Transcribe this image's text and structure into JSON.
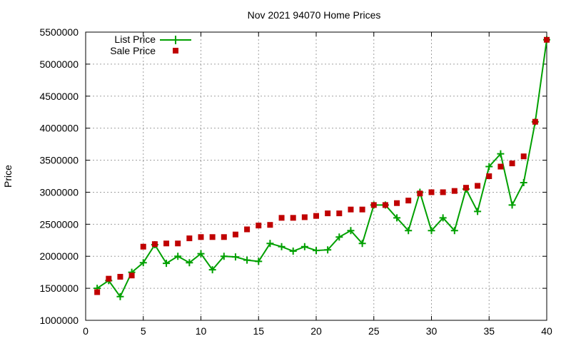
{
  "chart_data": {
    "type": "line",
    "title": "Nov 2021 94070 Home Prices",
    "xlabel": "",
    "ylabel": "Price",
    "xlim": [
      0,
      40
    ],
    "ylim": [
      1000000,
      5500000
    ],
    "x_ticks": [
      0,
      5,
      10,
      15,
      20,
      25,
      30,
      35,
      40
    ],
    "y_ticks": [
      1000000,
      1500000,
      2000000,
      2500000,
      3000000,
      3500000,
      4000000,
      4500000,
      5000000,
      5500000
    ],
    "grid": true,
    "legend_position": "top-left",
    "series": [
      {
        "name": "List Price",
        "style": "linespoints",
        "marker": "plus",
        "color": "#00a000",
        "x": [
          1,
          2,
          3,
          4,
          5,
          6,
          7,
          8,
          9,
          10,
          11,
          12,
          13,
          14,
          15,
          16,
          17,
          18,
          19,
          20,
          21,
          22,
          23,
          24,
          25,
          26,
          27,
          28,
          29,
          30,
          31,
          32,
          33,
          34,
          35,
          36,
          37,
          38,
          39,
          40
        ],
        "values": [
          1500000,
          1620000,
          1370000,
          1750000,
          1900000,
          2180000,
          1890000,
          2000000,
          1900000,
          2040000,
          1790000,
          2000000,
          1990000,
          1940000,
          1920000,
          2200000,
          2150000,
          2080000,
          2150000,
          2090000,
          2100000,
          2300000,
          2400000,
          2200000,
          2800000,
          2800000,
          2600000,
          2400000,
          3000000,
          2400000,
          2600000,
          2400000,
          3050000,
          2700000,
          3400000,
          3600000,
          2800000,
          3150000,
          4100000,
          5380000
        ]
      },
      {
        "name": "Sale Price",
        "style": "points",
        "marker": "square",
        "color": "#c00000",
        "x": [
          1,
          2,
          3,
          4,
          5,
          6,
          7,
          8,
          9,
          10,
          11,
          12,
          13,
          14,
          15,
          16,
          17,
          18,
          19,
          20,
          21,
          22,
          23,
          24,
          25,
          26,
          27,
          28,
          29,
          30,
          31,
          32,
          33,
          34,
          35,
          36,
          37,
          38,
          39,
          40
        ],
        "values": [
          1440000,
          1650000,
          1680000,
          1700000,
          2150000,
          2190000,
          2200000,
          2200000,
          2280000,
          2300000,
          2300000,
          2300000,
          2340000,
          2420000,
          2480000,
          2490000,
          2600000,
          2600000,
          2610000,
          2630000,
          2670000,
          2670000,
          2730000,
          2730000,
          2800000,
          2800000,
          2830000,
          2870000,
          2980000,
          3000000,
          3000000,
          3020000,
          3070000,
          3100000,
          3250000,
          3400000,
          3450000,
          3560000,
          4100000,
          5380000
        ]
      }
    ]
  }
}
